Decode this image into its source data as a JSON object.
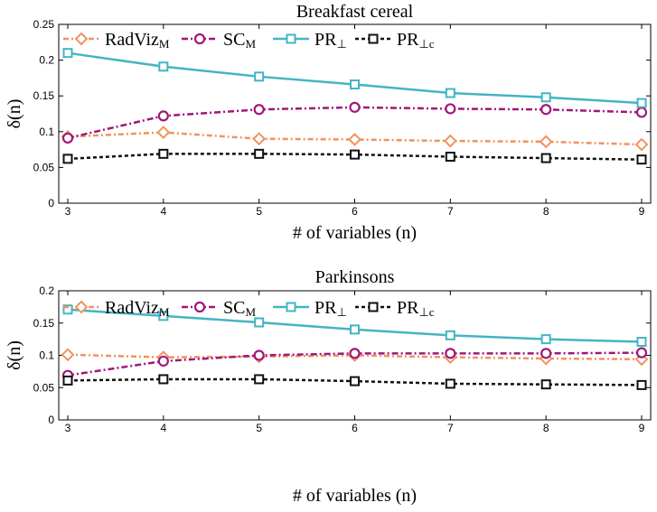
{
  "chart_data": [
    {
      "type": "line",
      "title": "Breakfast cereal",
      "xlabel": "# of variables (n)",
      "ylabel": "δ(n)",
      "x": [
        3,
        4,
        5,
        6,
        7,
        8,
        9
      ],
      "xlim": [
        3,
        9
      ],
      "ylim": [
        0,
        0.25
      ],
      "yticks": [
        0,
        0.05,
        0.1,
        0.15,
        0.2,
        0.25
      ],
      "grid": false,
      "legend_position": "top",
      "series": [
        {
          "name": "RadViz",
          "name_sub": "M",
          "color": "#f0935e",
          "dash": "6,3,2,3",
          "marker": "diamond",
          "values": [
            0.093,
            0.099,
            0.09,
            0.089,
            0.087,
            0.086,
            0.082
          ]
        },
        {
          "name": "SC",
          "name_sub": "M",
          "color": "#a0177a",
          "dash": "7,3,2,3",
          "marker": "circle",
          "values": [
            0.091,
            0.122,
            0.131,
            0.134,
            0.132,
            0.131,
            0.127
          ]
        },
        {
          "name": "PR",
          "name_sub": "⊥",
          "color": "#43b5c2",
          "dash": "",
          "marker": "square",
          "values": [
            0.21,
            0.191,
            0.177,
            0.166,
            0.154,
            0.148,
            0.14
          ]
        },
        {
          "name": "PR",
          "name_sub": "⊥c",
          "color": "#111111",
          "dash": "4,3",
          "marker": "square",
          "values": [
            0.062,
            0.069,
            0.069,
            0.068,
            0.065,
            0.063,
            0.061
          ]
        }
      ]
    },
    {
      "type": "line",
      "title": "Parkinsons",
      "xlabel": "# of variables (n)",
      "ylabel": "δ(n)",
      "x": [
        3,
        4,
        5,
        6,
        7,
        8,
        9
      ],
      "xlim": [
        3,
        9
      ],
      "ylim": [
        0,
        0.2
      ],
      "yticks": [
        0,
        0.05,
        0.1,
        0.15,
        0.2
      ],
      "grid": false,
      "legend_position": "top",
      "series": [
        {
          "name": "RadViz",
          "name_sub": "M",
          "color": "#f0935e",
          "dash": "6,3,2,3",
          "marker": "diamond",
          "values": [
            0.101,
            0.097,
            0.098,
            0.1,
            0.097,
            0.095,
            0.094
          ]
        },
        {
          "name": "SC",
          "name_sub": "M",
          "color": "#a0177a",
          "dash": "7,3,2,3",
          "marker": "circle",
          "values": [
            0.069,
            0.091,
            0.1,
            0.103,
            0.103,
            0.103,
            0.104
          ]
        },
        {
          "name": "PR",
          "name_sub": "⊥",
          "color": "#43b5c2",
          "dash": "",
          "marker": "square",
          "values": [
            0.171,
            0.161,
            0.151,
            0.14,
            0.131,
            0.125,
            0.121
          ]
        },
        {
          "name": "PR",
          "name_sub": "⊥c",
          "color": "#111111",
          "dash": "4,3",
          "marker": "square",
          "values": [
            0.061,
            0.063,
            0.063,
            0.06,
            0.056,
            0.055,
            0.054
          ]
        }
      ]
    }
  ]
}
